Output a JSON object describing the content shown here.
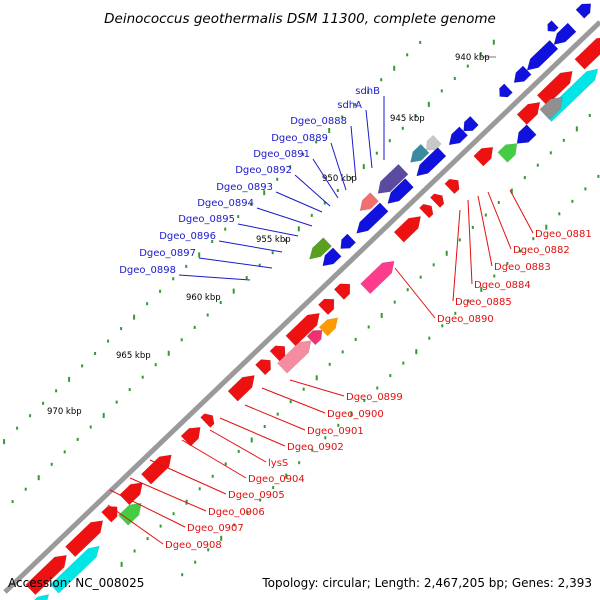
{
  "title": "Deinococcus geothermalis DSM 11300, complete genome",
  "footer": {
    "accession": "Accession: NC_008025",
    "summary": "Topology: circular; Length: 2,467,205 bp; Genes: 2,393"
  },
  "ticks": [
    "940 kbp",
    "945 kbp",
    "950 kbp",
    "955 kbp",
    "960 kbp",
    "965 kbp",
    "970 kbp"
  ],
  "gene_labels": {
    "upper_strand": [
      "sdhB",
      "sdhA",
      "Dgeo_0888",
      "Dgeo_0889",
      "Dgeo_0891",
      "Dgeo_0892",
      "Dgeo_0893",
      "Dgeo_0894",
      "Dgeo_0895",
      "Dgeo_0896",
      "Dgeo_0897",
      "Dgeo_0898"
    ],
    "right_group": [
      "Dgeo_0881",
      "Dgeo_0882",
      "Dgeo_0883",
      "Dgeo_0884",
      "Dgeo_0885",
      "Dgeo_0890"
    ],
    "lower_group": [
      "Dgeo_0899",
      "Dgeo_0900",
      "Dgeo_0901",
      "Dgeo_0902",
      "lysS",
      "Dgeo_0904",
      "Dgeo_0905",
      "Dgeo_0906",
      "Dgeo_0907",
      "Dgeo_0908"
    ]
  },
  "colors": {
    "backbone": "#808080",
    "forward_cds": "#ee1111",
    "reverse_cds": "#1111dd",
    "rna": "#00e5e5",
    "label_blue": "#1a1acc",
    "label_red": "#e01010",
    "dots": "#339933"
  }
}
